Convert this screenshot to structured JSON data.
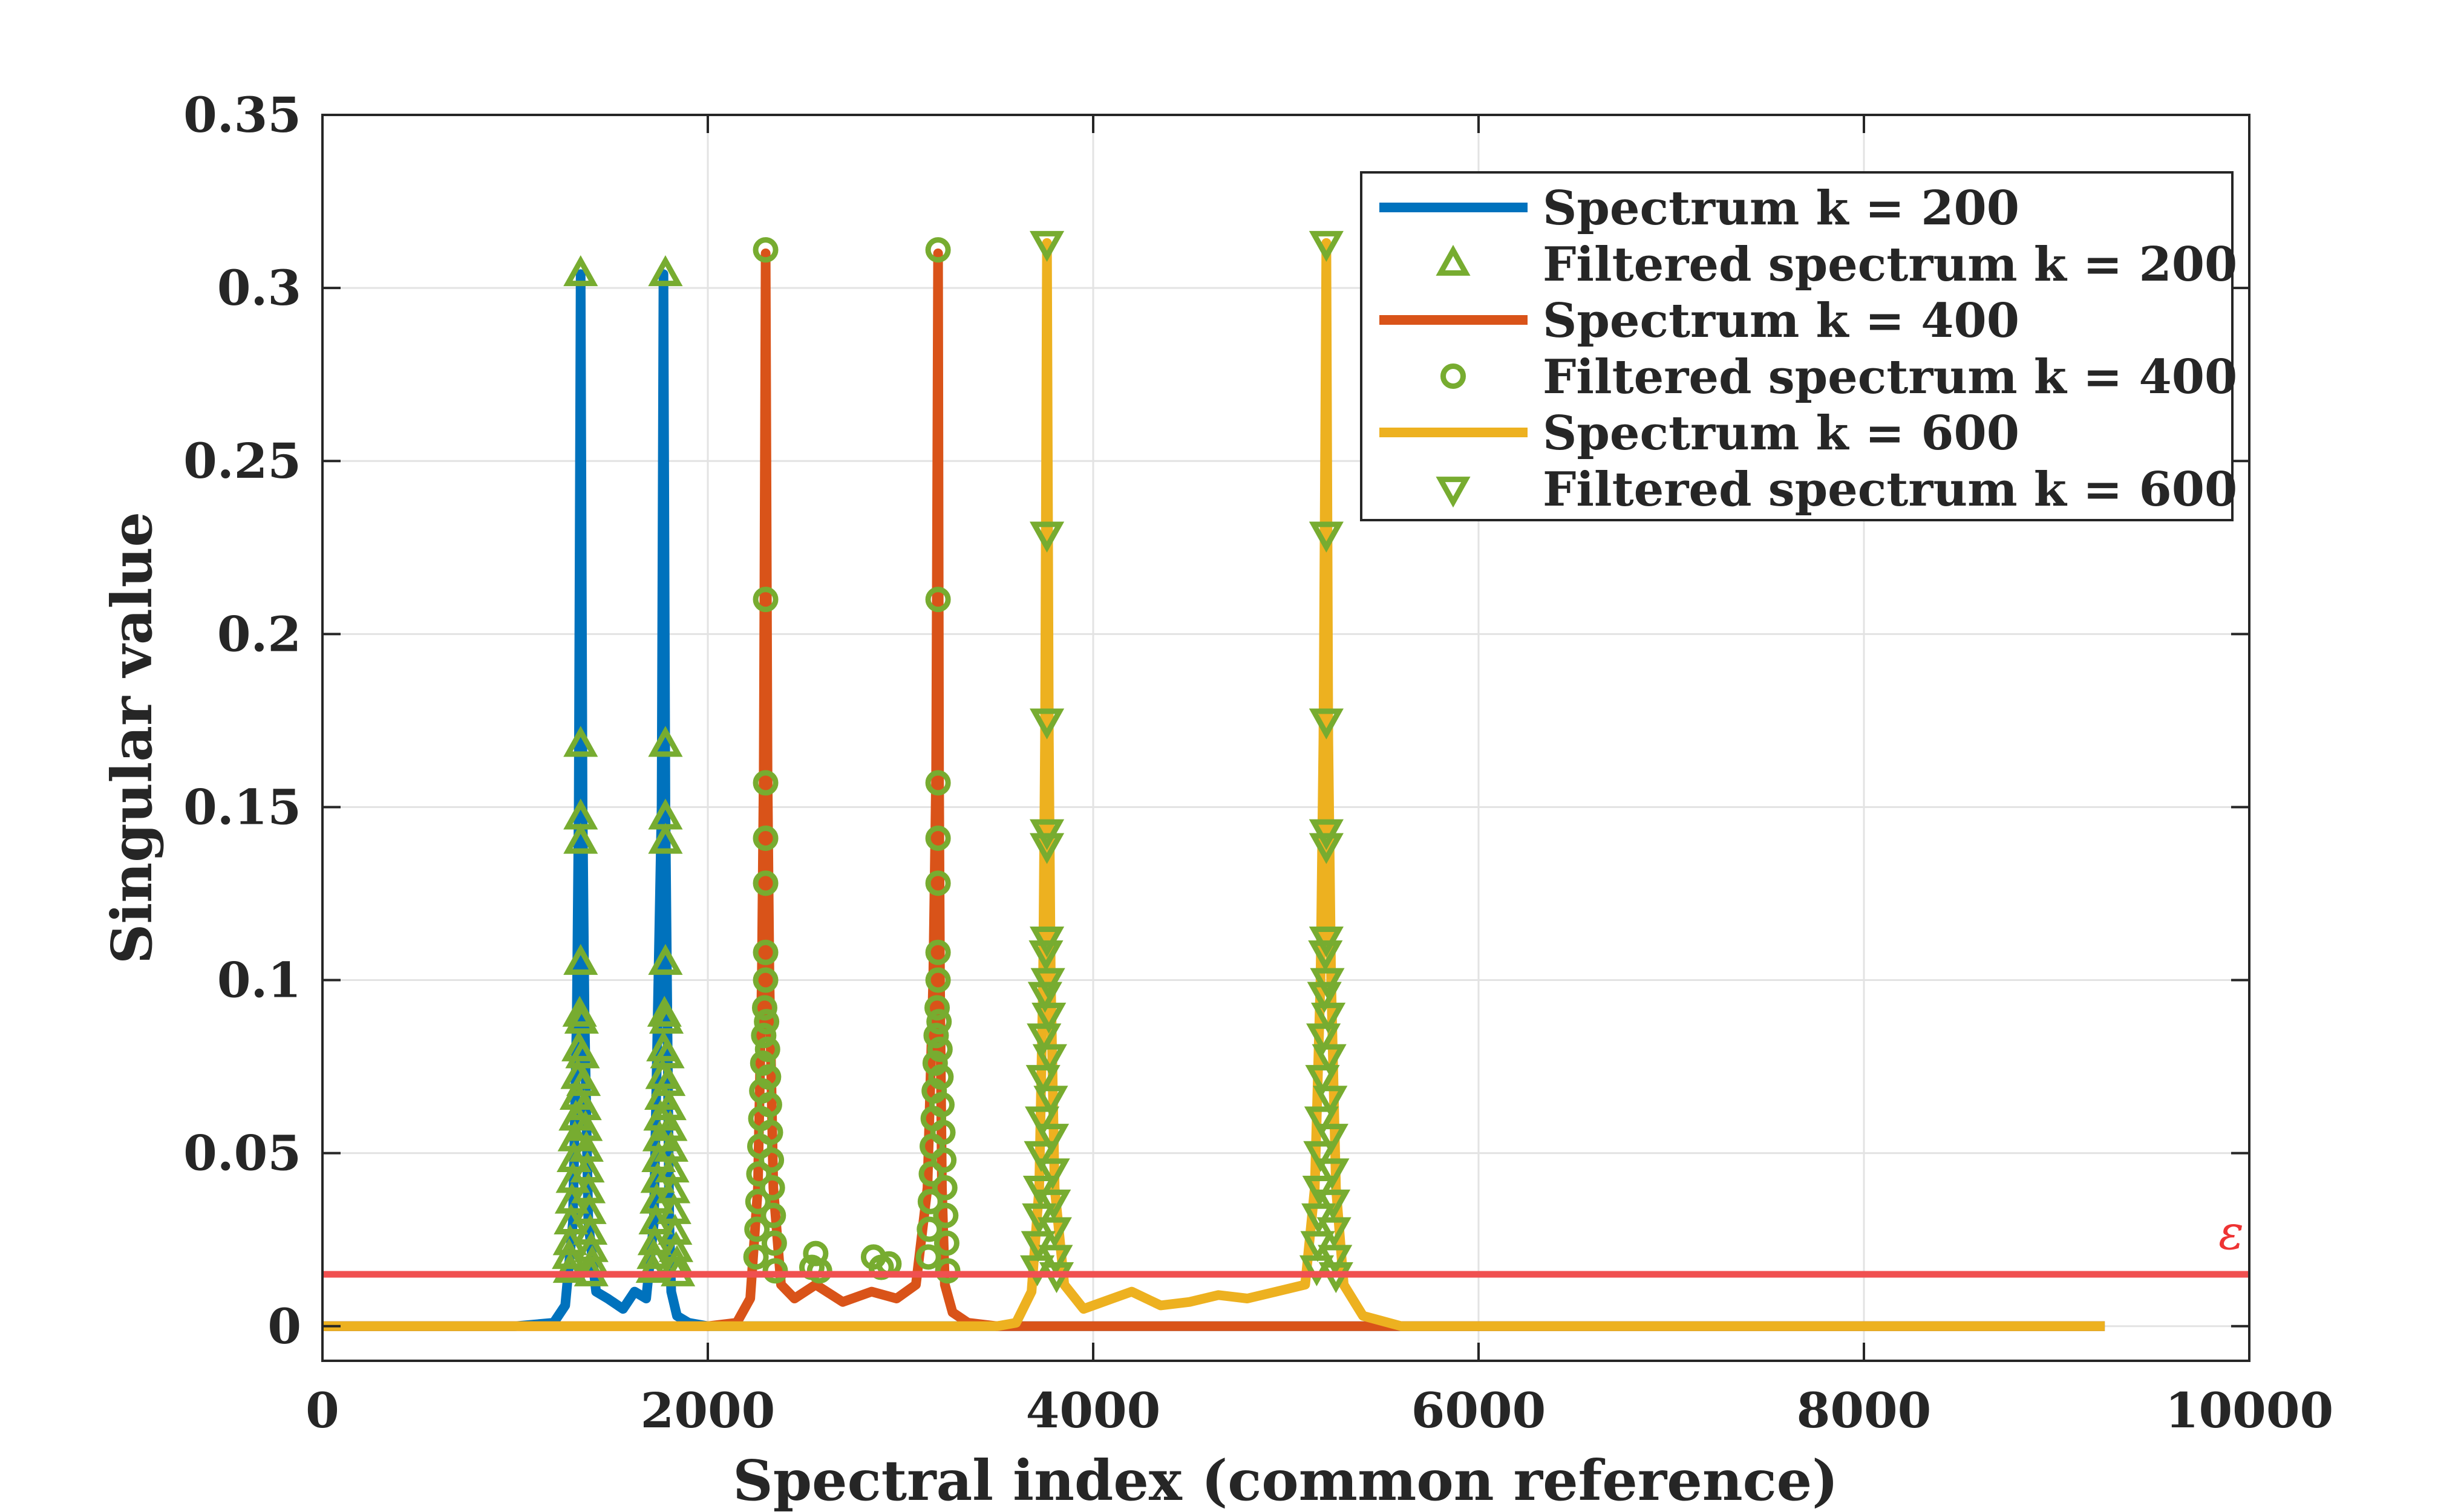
{
  "chart_data": {
    "type": "line",
    "title": "",
    "xlabel": "Spectral index (common reference)",
    "ylabel": "Singular value",
    "xlim": [
      0,
      10000
    ],
    "ylim": [
      -0.01,
      0.35
    ],
    "xticks": [
      0,
      2000,
      4000,
      6000,
      8000,
      10000
    ],
    "yticks": [
      0,
      0.05,
      0.1,
      0.15,
      0.2,
      0.25,
      0.3,
      0.35
    ],
    "xtick_labels": [
      "0",
      "2000",
      "4000",
      "6000",
      "8000",
      "10000"
    ],
    "ytick_labels": [
      "0",
      "0.05",
      "0.1",
      "0.15",
      "0.2",
      "0.25",
      "0.3",
      "0.35"
    ],
    "grid": true,
    "legend_position": "top-right",
    "threshold": {
      "label": "ε",
      "value": 0.015,
      "color": "#f05050"
    },
    "series": [
      {
        "name": "Spectrum k = 200",
        "kind": "line",
        "color": "#0072bd",
        "x": [
          0,
          1000,
          1200,
          1260,
          1300,
          1320,
          1330,
          1340,
          1350,
          1360,
          1380,
          1420,
          1480,
          1560,
          1620,
          1680,
          1720,
          1740,
          1760,
          1770,
          1780,
          1790,
          1800,
          1810,
          1840,
          1900,
          2000,
          9250
        ],
        "y": [
          0,
          0,
          0.001,
          0.006,
          0.03,
          0.09,
          0.15,
          0.304,
          0.15,
          0.09,
          0.03,
          0.01,
          0.008,
          0.005,
          0.01,
          0.008,
          0.03,
          0.09,
          0.15,
          0.304,
          0.15,
          0.09,
          0.03,
          0.01,
          0.003,
          0.001,
          0,
          0
        ]
      },
      {
        "name": "Filtered spectrum k = 200",
        "kind": "marker",
        "marker": "triangle-up",
        "color": "#77ac30",
        "x": [
          1340,
          1340,
          1340,
          1340,
          1340,
          1335,
          1345,
          1330,
          1350,
          1325,
          1355,
          1320,
          1360,
          1315,
          1365,
          1310,
          1370,
          1305,
          1375,
          1300,
          1380,
          1295,
          1385,
          1290,
          1390,
          1285,
          1395,
          1280,
          1400,
          1285,
          1395,
          1780,
          1780,
          1780,
          1780,
          1780,
          1775,
          1785,
          1770,
          1790,
          1765,
          1795,
          1760,
          1800,
          1755,
          1805,
          1750,
          1810,
          1745,
          1815,
          1740,
          1820,
          1735,
          1825,
          1730,
          1830,
          1725,
          1835,
          1720,
          1840,
          1715,
          1845
        ],
        "y": [
          0.304,
          0.168,
          0.147,
          0.14,
          0.105,
          0.09,
          0.088,
          0.08,
          0.078,
          0.072,
          0.07,
          0.066,
          0.063,
          0.06,
          0.057,
          0.054,
          0.051,
          0.048,
          0.045,
          0.042,
          0.039,
          0.036,
          0.033,
          0.03,
          0.027,
          0.024,
          0.022,
          0.02,
          0.018,
          0.016,
          0.015,
          0.304,
          0.168,
          0.147,
          0.14,
          0.105,
          0.09,
          0.088,
          0.08,
          0.078,
          0.072,
          0.07,
          0.066,
          0.063,
          0.06,
          0.057,
          0.054,
          0.051,
          0.048,
          0.045,
          0.042,
          0.039,
          0.036,
          0.033,
          0.03,
          0.027,
          0.024,
          0.022,
          0.02,
          0.018,
          0.016,
          0.015
        ]
      },
      {
        "name": "Spectrum k = 400",
        "kind": "line",
        "color": "#d95319",
        "x": [
          0,
          2000,
          2150,
          2220,
          2260,
          2280,
          2290,
          2300,
          2310,
          2320,
          2340,
          2380,
          2450,
          2560,
          2700,
          2850,
          2980,
          3080,
          3140,
          3170,
          3185,
          3195,
          3200,
          3205,
          3215,
          3230,
          3270,
          3350,
          3500,
          9250
        ],
        "y": [
          0,
          0,
          0.001,
          0.008,
          0.04,
          0.1,
          0.16,
          0.31,
          0.16,
          0.1,
          0.04,
          0.012,
          0.008,
          0.012,
          0.007,
          0.01,
          0.008,
          0.012,
          0.04,
          0.1,
          0.16,
          0.31,
          0.16,
          0.1,
          0.04,
          0.012,
          0.004,
          0.001,
          0,
          0
        ]
      },
      {
        "name": "Filtered spectrum k = 400",
        "kind": "marker",
        "marker": "circle",
        "color": "#77ac30",
        "x": [
          2300,
          2300,
          2300,
          2300,
          2300,
          2300,
          2300,
          2295,
          2305,
          2290,
          2310,
          2285,
          2315,
          2280,
          2320,
          2275,
          2325,
          2270,
          2330,
          2265,
          2335,
          2260,
          2340,
          2255,
          2345,
          2250,
          2350,
          2560,
          2540,
          2580,
          2860,
          2900,
          2940,
          3195,
          3195,
          3195,
          3195,
          3195,
          3195,
          3195,
          3190,
          3200,
          3185,
          3205,
          3180,
          3210,
          3175,
          3215,
          3170,
          3220,
          3165,
          3225,
          3160,
          3230,
          3155,
          3235,
          3150,
          3240,
          3145,
          3245
        ],
        "y": [
          0.311,
          0.21,
          0.157,
          0.141,
          0.128,
          0.108,
          0.1,
          0.092,
          0.088,
          0.084,
          0.08,
          0.076,
          0.072,
          0.068,
          0.064,
          0.06,
          0.056,
          0.052,
          0.048,
          0.044,
          0.04,
          0.036,
          0.032,
          0.028,
          0.024,
          0.02,
          0.016,
          0.021,
          0.017,
          0.016,
          0.02,
          0.017,
          0.018,
          0.311,
          0.21,
          0.157,
          0.141,
          0.128,
          0.108,
          0.1,
          0.092,
          0.088,
          0.084,
          0.08,
          0.076,
          0.072,
          0.068,
          0.064,
          0.06,
          0.056,
          0.052,
          0.048,
          0.044,
          0.04,
          0.036,
          0.032,
          0.028,
          0.024,
          0.02,
          0.016
        ]
      },
      {
        "name": "Spectrum k = 600",
        "kind": "line",
        "color": "#edb120",
        "x": [
          0,
          3500,
          3600,
          3680,
          3720,
          3740,
          3750,
          3760,
          3770,
          3780,
          3800,
          3850,
          3950,
          4100,
          4200,
          4350,
          4500,
          4650,
          4800,
          4950,
          5100,
          5150,
          5180,
          5195,
          5210,
          5220,
          5235,
          5260,
          5300,
          5400,
          5600,
          9250
        ],
        "y": [
          0,
          0,
          0.001,
          0.01,
          0.04,
          0.1,
          0.17,
          0.313,
          0.17,
          0.1,
          0.04,
          0.012,
          0.005,
          0.008,
          0.01,
          0.006,
          0.007,
          0.009,
          0.008,
          0.01,
          0.012,
          0.04,
          0.1,
          0.17,
          0.313,
          0.17,
          0.1,
          0.04,
          0.012,
          0.003,
          0,
          0
        ]
      },
      {
        "name": "Filtered spectrum k = 600",
        "kind": "marker",
        "marker": "triangle-down",
        "color": "#77ac30",
        "x": [
          3760,
          3760,
          3760,
          3760,
          3760,
          3760,
          3755,
          3765,
          3750,
          3770,
          3745,
          3775,
          3740,
          3780,
          3735,
          3785,
          3730,
          3790,
          3725,
          3795,
          3720,
          3800,
          3715,
          3805,
          3710,
          3810,
          5210,
          5210,
          5210,
          5210,
          5210,
          5210,
          5205,
          5215,
          5200,
          5220,
          5195,
          5225,
          5190,
          5230,
          5185,
          5235,
          5180,
          5240,
          5175,
          5245,
          5170,
          5250,
          5165,
          5255,
          5160,
          5260
        ],
        "y": [
          0.313,
          0.229,
          0.175,
          0.143,
          0.139,
          0.112,
          0.108,
          0.1,
          0.096,
          0.09,
          0.084,
          0.078,
          0.072,
          0.066,
          0.06,
          0.055,
          0.05,
          0.045,
          0.04,
          0.036,
          0.032,
          0.028,
          0.024,
          0.02,
          0.017,
          0.015,
          0.313,
          0.229,
          0.175,
          0.143,
          0.139,
          0.112,
          0.108,
          0.1,
          0.096,
          0.09,
          0.084,
          0.078,
          0.072,
          0.066,
          0.06,
          0.055,
          0.05,
          0.045,
          0.04,
          0.036,
          0.032,
          0.028,
          0.024,
          0.02,
          0.017,
          0.015
        ]
      }
    ]
  }
}
